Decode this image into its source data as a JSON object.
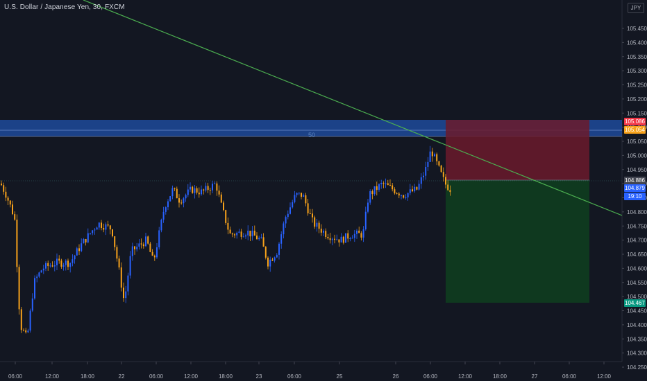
{
  "header": {
    "title": "U.S. Dollar / Japanese Yen, 30, FXCM"
  },
  "currency_button": {
    "label": "JPY"
  },
  "zone": {
    "label": "50"
  },
  "price_axis": {
    "ticks": [
      "105.450",
      "105.400",
      "105.350",
      "105.300",
      "105.250",
      "105.200",
      "105.150",
      "105.100",
      "105.050",
      "105.000",
      "104.950",
      "104.900",
      "104.850",
      "104.800",
      "104.750",
      "104.700",
      "104.650",
      "104.600",
      "104.550",
      "104.500",
      "104.450",
      "104.400",
      "104.350",
      "104.300",
      "104.250"
    ]
  },
  "time_axis": {
    "labels": [
      "06:00",
      "12:00",
      "18:00",
      "22",
      "06:00",
      "12:00",
      "18:00",
      "23",
      "06:00",
      "25",
      "26",
      "06:00",
      "12:00",
      "18:00",
      "27",
      "06:00",
      "12:00"
    ]
  },
  "badges": {
    "stop_loss": "105.086",
    "entry_upper": "105.054",
    "current": "104.886",
    "last": "104.879",
    "countdown": "19:10",
    "take_profit": "104.467"
  },
  "colors": {
    "background": "#131722",
    "bull": "#2962ff",
    "bear": "#f7a21b",
    "trendline": "#4caf50",
    "zone": "#1e4a9a",
    "loss_fill": "#6b1a2b",
    "profit_fill": "#0f3d1f",
    "stop_badge": "#f23645",
    "entry_badge": "#f7a21b",
    "current_badge": "#434651",
    "last_badge": "#2962ff",
    "tp_badge": "#089981"
  }
}
